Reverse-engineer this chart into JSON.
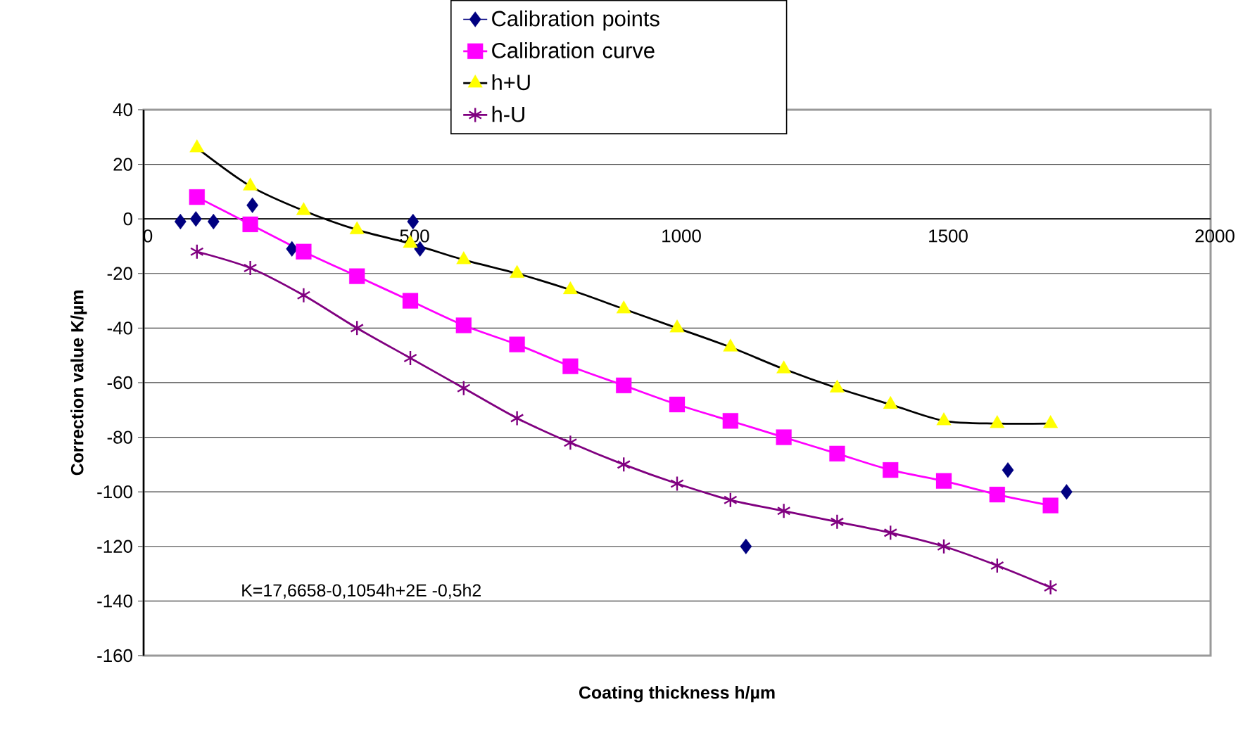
{
  "chart_data": {
    "type": "line",
    "xlabel": "Coating thickness h/µm",
    "ylabel": "Correction value K/µm",
    "annotations": [
      "K=17,6658-0,1054h+2E -0,5h2"
    ],
    "xlim": [
      0,
      2000
    ],
    "xticks": [
      0,
      500,
      1000,
      1500,
      2000
    ],
    "ylim": [
      -160,
      40
    ],
    "yticks": [
      -160,
      -140,
      -120,
      -100,
      -80,
      -60,
      -40,
      -20,
      0,
      20,
      40
    ],
    "grid": "y",
    "legend": "top",
    "series": [
      {
        "name": "Calibration points",
        "type": "scatter",
        "marker": "diamond",
        "color": "#000080",
        "x": [
          69,
          98,
          131,
          204,
          278,
          505,
          518,
          1129,
          1620,
          1730
        ],
        "values": [
          -1,
          0,
          -1,
          5,
          -11,
          -1,
          -11,
          -120,
          -92,
          -100
        ]
      },
      {
        "name": "Calibration curve",
        "marker": "square",
        "color": "#ff00ff",
        "x": [
          100,
          200,
          300,
          400,
          500,
          600,
          700,
          800,
          900,
          1000,
          1100,
          1200,
          1300,
          1400,
          1500,
          1600,
          1700
        ],
        "values": [
          8,
          -2,
          -12,
          -21,
          -30,
          -39,
          -46,
          -54,
          -61,
          -68,
          -74,
          -80,
          -86,
          -92,
          -96,
          -101,
          -105
        ]
      },
      {
        "name": "h+U",
        "marker": "triangle",
        "color": "#ffff00",
        "x": [
          100,
          200,
          300,
          400,
          500,
          600,
          700,
          800,
          900,
          1000,
          1100,
          1200,
          1300,
          1400,
          1500,
          1600,
          1700
        ],
        "values": [
          26,
          12,
          3,
          -4,
          -9,
          -15,
          -20,
          -26,
          -33,
          -40,
          -47,
          -55,
          -62,
          -68,
          -74,
          -75,
          -75
        ]
      },
      {
        "name": "h-U",
        "marker": "cross",
        "color": "#800080",
        "x": [
          100,
          200,
          300,
          400,
          500,
          600,
          700,
          800,
          900,
          1000,
          1100,
          1200,
          1300,
          1400,
          1500,
          1600,
          1700
        ],
        "values": [
          -12,
          -18,
          -28,
          -40,
          -51,
          -62,
          -73,
          -82,
          -90,
          -97,
          -103,
          -107,
          -111,
          -115,
          -120,
          -127,
          -135
        ]
      }
    ]
  }
}
